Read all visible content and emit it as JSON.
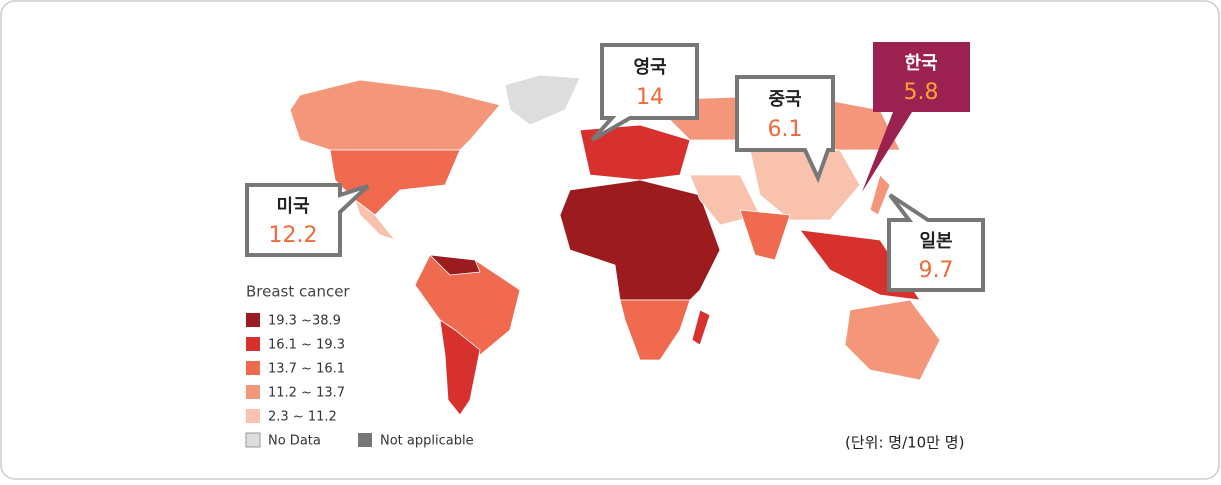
{
  "legend": {
    "title": "Breast cancer",
    "items": [
      {
        "label": "19.3 ~38.9",
        "color": "#9b1b1e"
      },
      {
        "label": "16.1 ~ 19.3",
        "color": "#d7312e"
      },
      {
        "label": "13.7 ~ 16.1",
        "color": "#ef6a4f"
      },
      {
        "label": "11.2 ~ 13.7",
        "color": "#f4967a"
      },
      {
        "label": "2.3 ~ 11.2",
        "color": "#f9c2ac"
      }
    ],
    "no_data": {
      "label": "No Data",
      "color": "#dddddd"
    },
    "not_applicable": {
      "label": "Not applicable",
      "color": "#777777"
    }
  },
  "callouts": [
    {
      "label": "미국",
      "value": 12.2
    },
    {
      "label": "영국",
      "value": 14
    },
    {
      "label": "중국",
      "value": 6.1
    },
    {
      "label": "한국",
      "value": 5.8
    },
    {
      "label": "일본",
      "value": 9.7
    }
  ],
  "unit": "(단위: 명/10만 명)"
}
